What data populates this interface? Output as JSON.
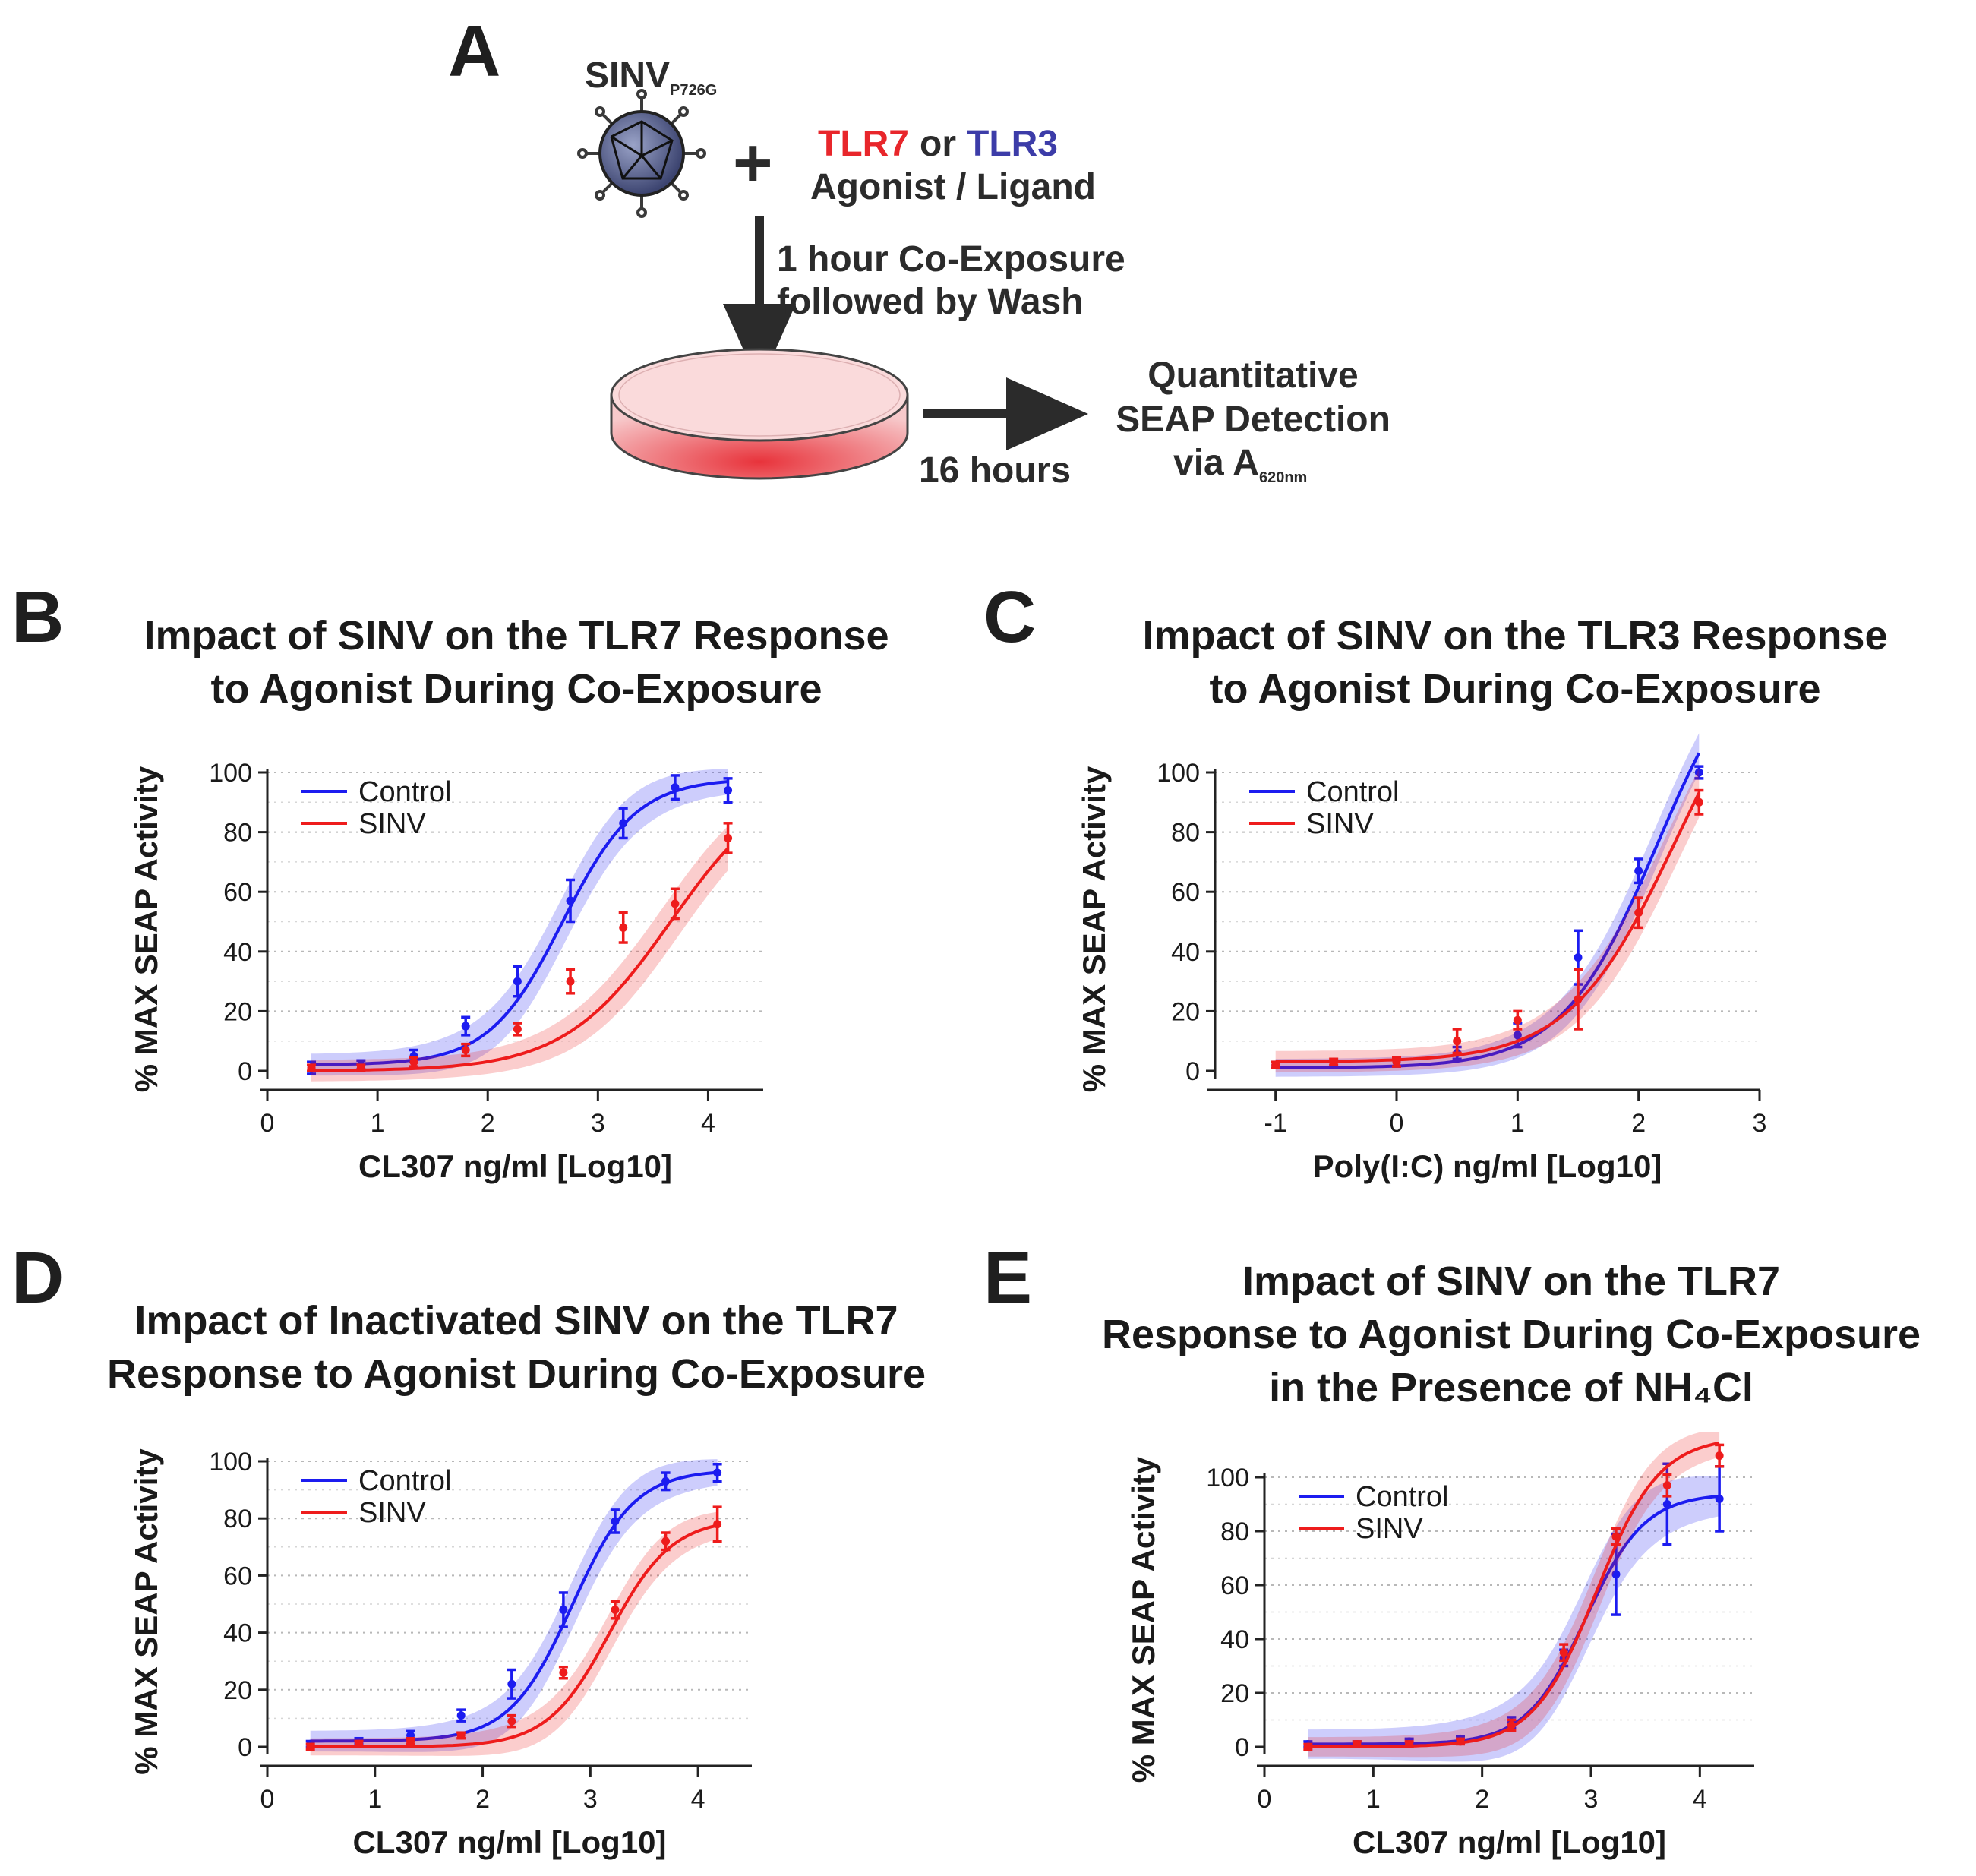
{
  "schematic": {
    "panel": "A",
    "virus": "SINV",
    "virus_sub": "P726G",
    "plus": "+",
    "tlr7": "TLR7",
    "or": "or",
    "tlr3": "TLR3",
    "agonist": "Agonist / Ligand",
    "step1_line1": "1 hour Co-Exposure",
    "step1_line2": "followed by Wash",
    "step2": "16 hours",
    "detect_line1": "Quantitative",
    "detect_line2": "SEAP Detection",
    "detect_line3": "via A",
    "detect_sub": "620nm",
    "colors": {
      "tlr7": "#e8262b",
      "tlr3": "#3c3ca8",
      "arrow": "#2b2b2b",
      "dish": "#e8333b"
    }
  },
  "colors": {
    "control": "#1c1cf0",
    "sinv": "#ee1c1c"
  },
  "chart_data": [
    {
      "id": "B",
      "type": "line",
      "title_lines": [
        "Impact of SINV on the TLR7 Response",
        "to Agonist During Co-Exposure"
      ],
      "xlabel": "CL307 ng/ml [Log10]",
      "ylabel": "% MAX SEAP Activity",
      "xlim": [
        0,
        4.5
      ],
      "ylim": [
        0,
        100
      ],
      "xticks": [
        0,
        1,
        2,
        3,
        4
      ],
      "yticks": [
        0,
        20,
        40,
        60,
        80,
        100
      ],
      "legend": [
        "Control",
        "SINV"
      ],
      "series": [
        {
          "name": "Control",
          "bottom": 2,
          "top": 98,
          "ec50": 2.68,
          "hill": 1.3,
          "band": 6,
          "x": [
            0.4,
            0.85,
            1.33,
            1.8,
            2.27,
            2.75,
            3.23,
            3.7,
            4.18
          ],
          "y": [
            1,
            2,
            5,
            15,
            30,
            57,
            83,
            95,
            94
          ],
          "err": [
            2,
            1.5,
            2,
            3,
            5,
            7,
            5,
            4,
            4
          ]
        },
        {
          "name": "SINV",
          "bottom": 0,
          "top": 100,
          "ec50": 3.66,
          "hill": 0.9,
          "band": 6,
          "x": [
            0.4,
            0.85,
            1.33,
            1.8,
            2.27,
            2.75,
            3.23,
            3.7,
            4.18
          ],
          "y": [
            1,
            1,
            3,
            7,
            14,
            30,
            48,
            56,
            78
          ],
          "err": [
            1,
            1,
            1.5,
            2,
            2,
            4,
            5,
            5,
            5
          ]
        }
      ]
    },
    {
      "id": "C",
      "type": "line",
      "title_lines": [
        "Impact of SINV on the TLR3 Response",
        "to Agonist During Co-Exposure"
      ],
      "xlabel": "Poly(I:C) ng/ml [Log10]",
      "ylabel": "% MAX SEAP Activity",
      "xlim": [
        -1.5,
        3
      ],
      "ylim": [
        0,
        100
      ],
      "xticks": [
        -1,
        0,
        1,
        2,
        3
      ],
      "yticks": [
        0,
        20,
        40,
        60,
        80,
        100
      ],
      "legend": [
        "Control",
        "SINV"
      ],
      "series": [
        {
          "name": "Control",
          "bottom": 1,
          "top": 150,
          "ec50": 2.15,
          "hill": 1.1,
          "band": 5,
          "x": [
            -1,
            -0.52,
            0,
            0.5,
            1,
            1.5,
            2,
            2.5
          ],
          "y": [
            2,
            2,
            3,
            6,
            12,
            38,
            67,
            100
          ],
          "err": [
            1,
            1,
            1.5,
            2,
            4,
            9,
            4,
            2
          ]
        },
        {
          "name": "SINV",
          "bottom": 3,
          "top": 150,
          "ec50": 2.3,
          "hill": 1.0,
          "band": 6,
          "x": [
            -1,
            -0.52,
            0,
            0.5,
            1,
            1.5,
            2,
            2.5
          ],
          "y": [
            2,
            3,
            3,
            10,
            17,
            24,
            53,
            90
          ],
          "err": [
            1,
            1,
            1.5,
            4,
            3,
            10,
            5,
            4
          ]
        }
      ]
    },
    {
      "id": "D",
      "type": "line",
      "title_lines": [
        "Impact of Inactivated SINV on the TLR7",
        "Response to Agonist During Co-Exposure"
      ],
      "xlabel": "CL307 ng/ml [Log10]",
      "ylabel": "% MAX SEAP Activity",
      "xlim": [
        0,
        4.5
      ],
      "ylim": [
        0,
        100
      ],
      "xticks": [
        0,
        1,
        2,
        3,
        4
      ],
      "yticks": [
        0,
        20,
        40,
        60,
        80,
        100
      ],
      "legend": [
        "Control",
        "SINV"
      ],
      "series": [
        {
          "name": "Control",
          "bottom": 2,
          "top": 97,
          "ec50": 2.83,
          "hill": 1.5,
          "band": 6,
          "x": [
            0.4,
            0.85,
            1.33,
            1.8,
            2.27,
            2.75,
            3.23,
            3.7,
            4.18
          ],
          "y": [
            1,
            2,
            4,
            11,
            22,
            48,
            79,
            93,
            96
          ],
          "err": [
            1,
            1,
            1.5,
            2,
            5,
            6,
            4,
            3,
            3
          ]
        },
        {
          "name": "SINV",
          "bottom": 0,
          "top": 80,
          "ec50": 3.18,
          "hill": 1.5,
          "band": 5,
          "x": [
            0.4,
            0.85,
            1.33,
            1.8,
            2.27,
            2.75,
            3.23,
            3.7,
            4.18
          ],
          "y": [
            0,
            1,
            2,
            4,
            9,
            26,
            48,
            72,
            78
          ],
          "err": [
            1,
            1,
            1,
            1,
            2,
            2,
            3,
            3,
            6
          ]
        }
      ]
    },
    {
      "id": "E",
      "type": "line",
      "title_lines": [
        "Impact of SINV on the TLR7",
        "Response to Agonist During Co-Exposure",
        "in the Presence of NH₄Cl"
      ],
      "xlabel": "CL307 ng/ml [Log10]",
      "ylabel": "% MAX SEAP Activity",
      "xlim": [
        0,
        4.5
      ],
      "ylim": [
        0,
        100
      ],
      "xticks": [
        0,
        1,
        2,
        3,
        4
      ],
      "yticks": [
        0,
        20,
        40,
        60,
        80,
        100
      ],
      "legend": [
        "Control",
        "SINV"
      ],
      "series": [
        {
          "name": "Control",
          "bottom": 1,
          "top": 94,
          "ec50": 2.95,
          "hill": 1.6,
          "band": 9,
          "x": [
            0.4,
            0.85,
            1.33,
            1.8,
            2.27,
            2.75,
            3.23,
            3.7,
            4.18
          ],
          "y": [
            1,
            1,
            2,
            3,
            9,
            33,
            64,
            90,
            92
          ],
          "err": [
            1,
            1,
            1,
            1,
            2,
            3,
            15,
            15,
            12
          ]
        },
        {
          "name": "SINV",
          "bottom": 0,
          "top": 115,
          "ec50": 3.05,
          "hill": 1.5,
          "band": 6,
          "x": [
            0.4,
            0.85,
            1.33,
            1.8,
            2.27,
            2.75,
            3.23,
            3.7,
            4.18
          ],
          "y": [
            0,
            1,
            1,
            2,
            8,
            35,
            78,
            97,
            108
          ],
          "err": [
            1,
            1,
            1,
            1,
            2,
            3,
            3,
            4,
            4
          ]
        }
      ]
    }
  ]
}
